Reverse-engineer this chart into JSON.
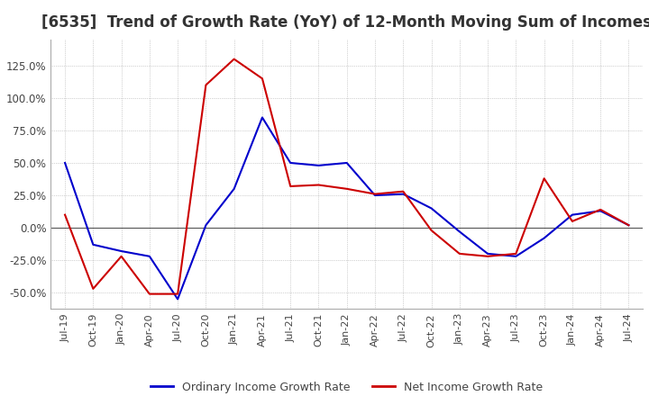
{
  "title": "[6535]  Trend of Growth Rate (YoY) of 12-Month Moving Sum of Incomes",
  "title_fontsize": 12,
  "ordinary_income": {
    "dates": [
      "Jul-19",
      "Oct-19",
      "Jan-20",
      "Apr-20",
      "Jul-20",
      "Oct-20",
      "Jan-21",
      "Apr-21",
      "Jul-21",
      "Oct-21",
      "Jan-22",
      "Apr-22",
      "Jul-22",
      "Oct-22",
      "Jan-23",
      "Apr-23",
      "Jul-23",
      "Oct-23",
      "Jan-24",
      "Apr-24",
      "Jul-24"
    ],
    "values": [
      0.5,
      -0.13,
      -0.18,
      -0.22,
      -0.55,
      0.02,
      0.3,
      0.85,
      0.5,
      0.48,
      0.5,
      0.25,
      0.26,
      0.15,
      -0.03,
      -0.2,
      -0.22,
      -0.08,
      0.1,
      0.13,
      0.02
    ],
    "color": "#0000CC"
  },
  "net_income": {
    "dates": [
      "Jul-19",
      "Oct-19",
      "Jan-20",
      "Apr-20",
      "Jul-20",
      "Oct-20",
      "Jan-21",
      "Apr-21",
      "Jul-21",
      "Oct-21",
      "Jan-22",
      "Apr-22",
      "Jul-22",
      "Oct-22",
      "Jan-23",
      "Apr-23",
      "Jul-23",
      "Oct-23",
      "Jan-24",
      "Apr-24",
      "Jul-24"
    ],
    "values": [
      0.1,
      -0.47,
      -0.22,
      -0.51,
      -0.51,
      1.1,
      1.3,
      1.15,
      0.32,
      0.33,
      0.3,
      0.26,
      0.28,
      -0.02,
      -0.2,
      -0.22,
      -0.2,
      0.38,
      0.05,
      0.14,
      0.02
    ],
    "color": "#CC0000"
  },
  "ylim": [
    -0.625,
    1.45
  ],
  "yticks": [
    -0.5,
    -0.25,
    0.0,
    0.25,
    0.5,
    0.75,
    1.0,
    1.25
  ],
  "background_color": "#FFFFFF",
  "grid_color": "#AAAAAA",
  "legend_labels": [
    "Ordinary Income Growth Rate",
    "Net Income Growth Rate"
  ]
}
